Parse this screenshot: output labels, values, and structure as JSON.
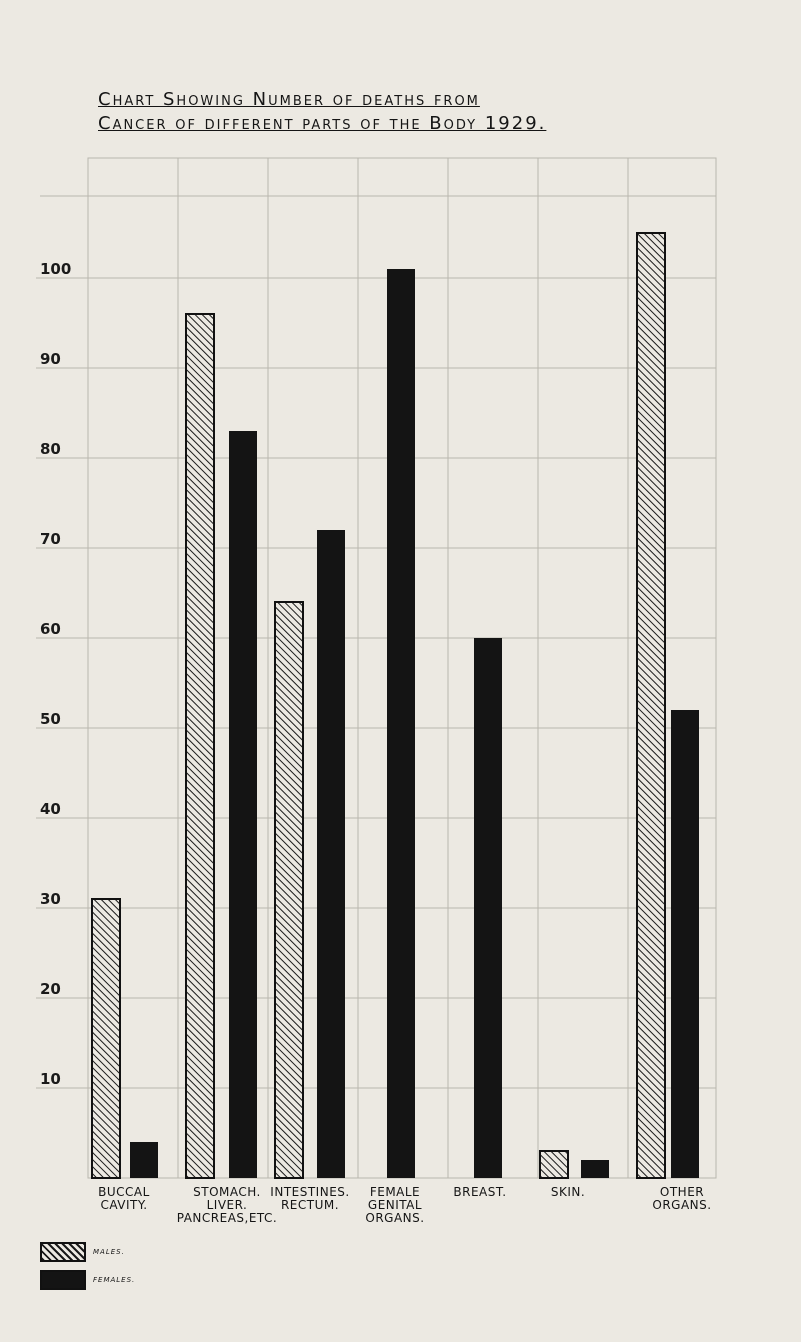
{
  "chart_data": {
    "type": "bar",
    "title": "Chart Showing Number of deaths from",
    "subtitle": "Cancer of different parts of the Body 1929.",
    "categories": [
      "BUCCAL\nCAVITY.",
      "STOMACH.\nLIVER.\nPANCREAS,ETC.",
      "INTESTINES.\nRECTUM.",
      "FEMALE\nGENITAL\nORGANS.",
      "BREAST.",
      "SKIN.",
      "OTHER\nORGANS."
    ],
    "series": [
      {
        "name": "MALES.",
        "pattern": "hatched",
        "values": [
          31,
          96,
          64,
          null,
          null,
          3,
          105
        ]
      },
      {
        "name": "FEMALES.",
        "pattern": "solid",
        "values": [
          4,
          83,
          72,
          101,
          60,
          2,
          52
        ]
      }
    ],
    "yticks": [
      "10",
      "20",
      "30",
      "40",
      "50",
      "60",
      "70",
      "80",
      "90",
      "100"
    ],
    "ylim": [
      0,
      110
    ],
    "grid": true,
    "legend_position": "bottom-left",
    "colors": {
      "bar_fill": "#141414",
      "hatch": "#1a1a1a",
      "background": "#ece9e2",
      "grid": "#b9b6ae"
    }
  }
}
